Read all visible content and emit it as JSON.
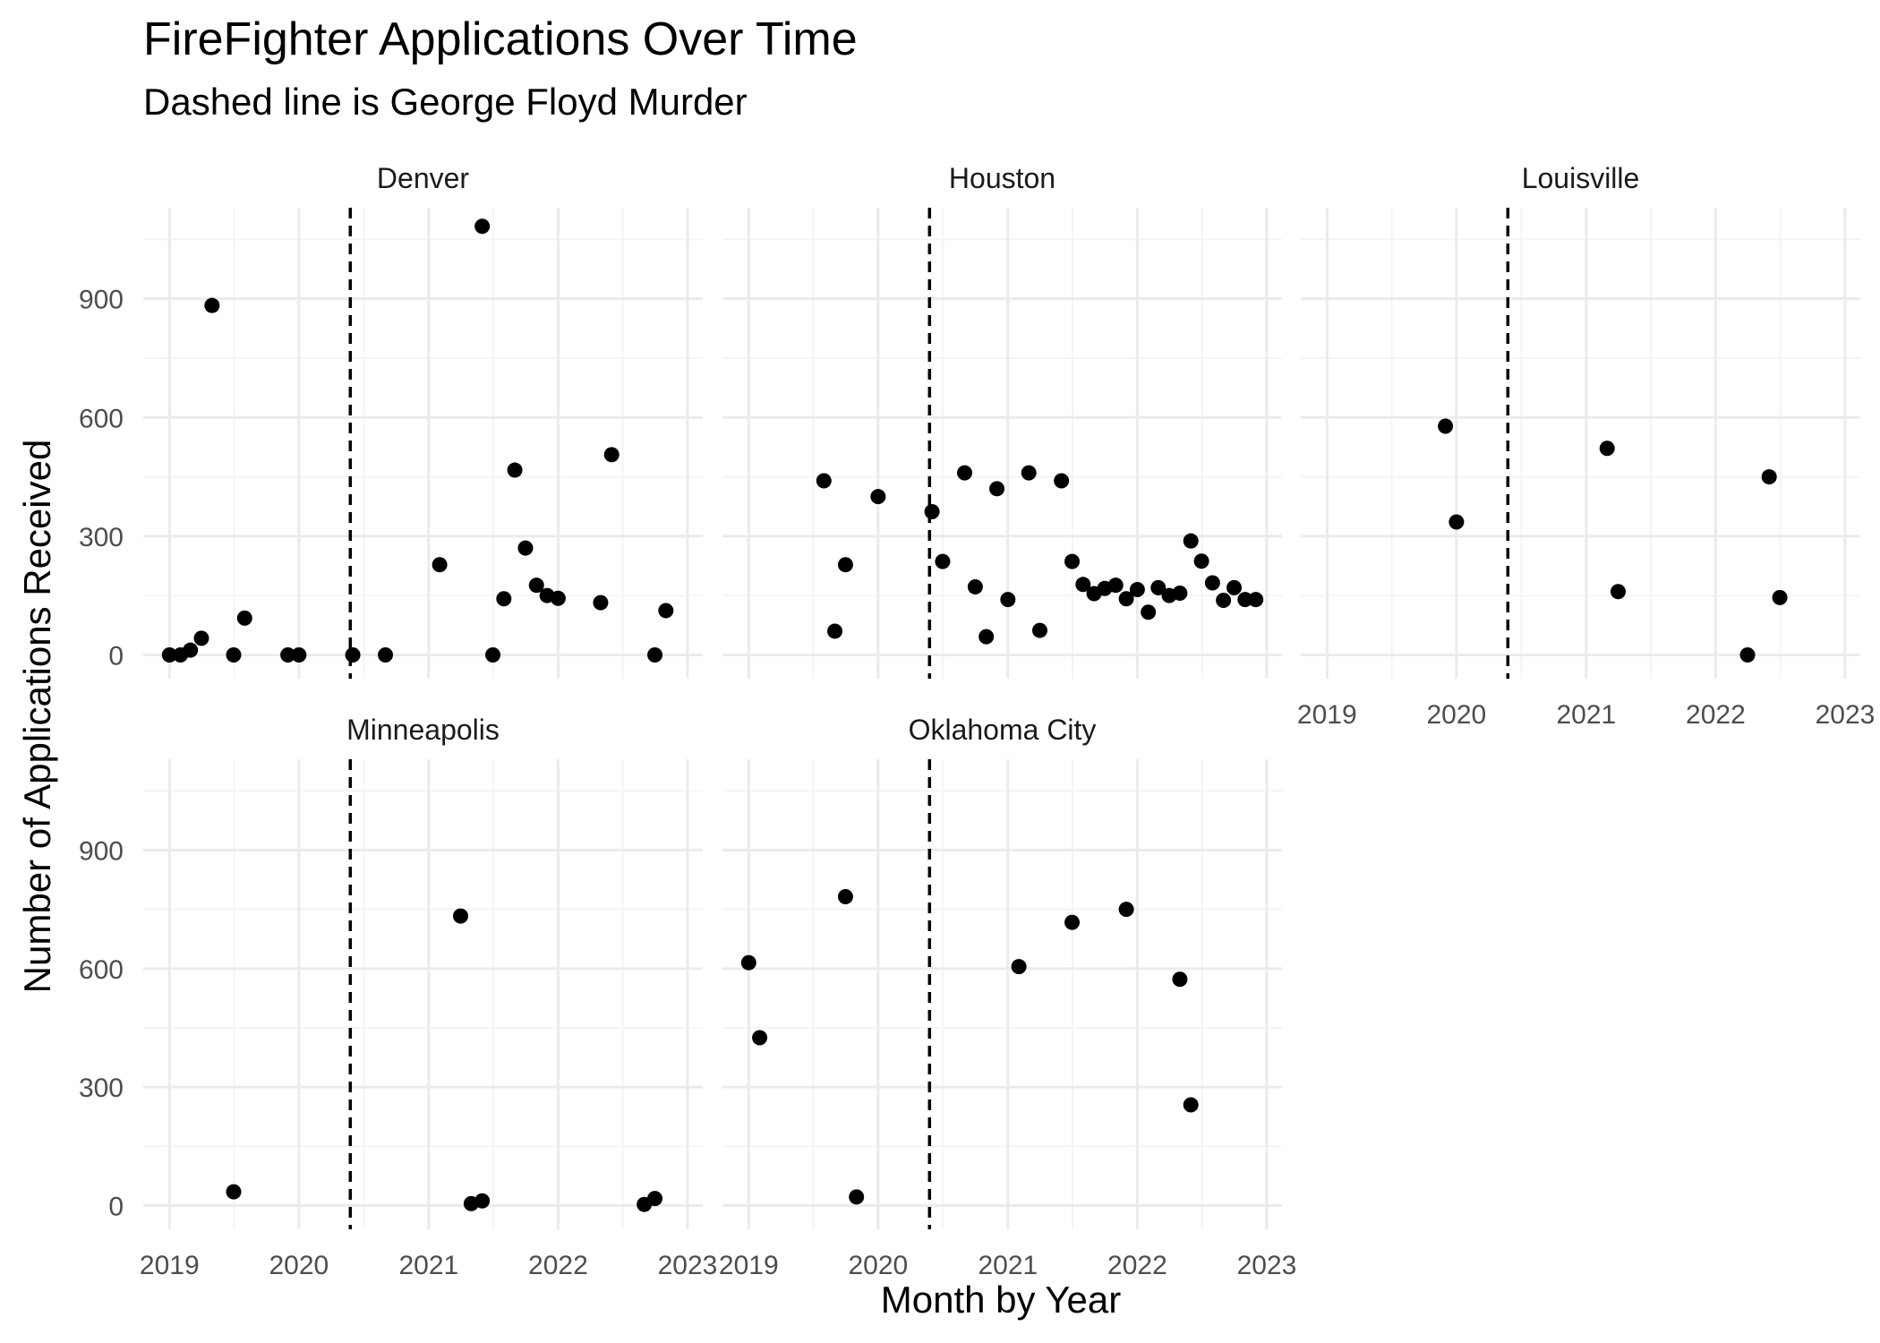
{
  "chart_data": {
    "type": "scatter",
    "title": "FireFighter Applications Over Time",
    "subtitle": "Dashed line is George Floyd Murder",
    "xlabel": "Month by Year",
    "ylabel": "Number of Applications Received",
    "x_ticks": [
      "2019",
      "2020",
      "2021",
      "2022",
      "2023"
    ],
    "y_ticks": [
      "0",
      "300",
      "600",
      "900"
    ],
    "ylim": [
      -60,
      1130
    ],
    "xlim": [
      "2018-10-19",
      "2023-02-13"
    ],
    "vline_date": "2020-05-25",
    "grid": true,
    "marker_color": "#000000",
    "grid_color": "#ebebeb",
    "facets": [
      {
        "label": "Denver",
        "points": [
          {
            "date": "2019-01-01",
            "value": 0
          },
          {
            "date": "2019-02-01",
            "value": 0
          },
          {
            "date": "2019-03-01",
            "value": 12
          },
          {
            "date": "2019-04-01",
            "value": 42
          },
          {
            "date": "2019-05-01",
            "value": 883
          },
          {
            "date": "2019-07-01",
            "value": 0
          },
          {
            "date": "2019-08-01",
            "value": 93
          },
          {
            "date": "2019-12-01",
            "value": 0
          },
          {
            "date": "2020-01-01",
            "value": 0
          },
          {
            "date": "2020-06-01",
            "value": 0
          },
          {
            "date": "2020-09-01",
            "value": 0
          },
          {
            "date": "2021-02-01",
            "value": 228
          },
          {
            "date": "2021-06-01",
            "value": 1083
          },
          {
            "date": "2021-07-01",
            "value": 0
          },
          {
            "date": "2021-08-01",
            "value": 142
          },
          {
            "date": "2021-09-01",
            "value": 467
          },
          {
            "date": "2021-10-01",
            "value": 270
          },
          {
            "date": "2021-11-01",
            "value": 176
          },
          {
            "date": "2021-12-01",
            "value": 150
          },
          {
            "date": "2022-01-01",
            "value": 143
          },
          {
            "date": "2022-05-01",
            "value": 132
          },
          {
            "date": "2022-06-01",
            "value": 506
          },
          {
            "date": "2022-10-01",
            "value": 0
          },
          {
            "date": "2022-11-01",
            "value": 112
          }
        ]
      },
      {
        "label": "Houston",
        "points": [
          {
            "date": "2019-08-01",
            "value": 440
          },
          {
            "date": "2019-09-01",
            "value": 60
          },
          {
            "date": "2019-10-01",
            "value": 228
          },
          {
            "date": "2020-01-01",
            "value": 400
          },
          {
            "date": "2020-06-01",
            "value": 362
          },
          {
            "date": "2020-07-01",
            "value": 236
          },
          {
            "date": "2020-09-01",
            "value": 460
          },
          {
            "date": "2020-10-01",
            "value": 172
          },
          {
            "date": "2020-11-01",
            "value": 46
          },
          {
            "date": "2020-12-01",
            "value": 420
          },
          {
            "date": "2021-01-01",
            "value": 140
          },
          {
            "date": "2021-03-01",
            "value": 460
          },
          {
            "date": "2021-04-01",
            "value": 62
          },
          {
            "date": "2021-06-01",
            "value": 440
          },
          {
            "date": "2021-07-01",
            "value": 236
          },
          {
            "date": "2021-08-01",
            "value": 178
          },
          {
            "date": "2021-09-01",
            "value": 155
          },
          {
            "date": "2021-10-01",
            "value": 168
          },
          {
            "date": "2021-11-01",
            "value": 176
          },
          {
            "date": "2021-12-01",
            "value": 142
          },
          {
            "date": "2022-01-01",
            "value": 165
          },
          {
            "date": "2022-02-01",
            "value": 108
          },
          {
            "date": "2022-03-01",
            "value": 170
          },
          {
            "date": "2022-04-01",
            "value": 150
          },
          {
            "date": "2022-05-01",
            "value": 156
          },
          {
            "date": "2022-06-01",
            "value": 288
          },
          {
            "date": "2022-07-01",
            "value": 237
          },
          {
            "date": "2022-08-01",
            "value": 182
          },
          {
            "date": "2022-09-01",
            "value": 138
          },
          {
            "date": "2022-10-01",
            "value": 170
          },
          {
            "date": "2022-11-01",
            "value": 140
          },
          {
            "date": "2022-12-01",
            "value": 140
          }
        ]
      },
      {
        "label": "Louisville",
        "points": [
          {
            "date": "2019-12-01",
            "value": 578
          },
          {
            "date": "2020-01-01",
            "value": 336
          },
          {
            "date": "2021-03-01",
            "value": 522
          },
          {
            "date": "2021-04-01",
            "value": 160
          },
          {
            "date": "2022-04-01",
            "value": 0
          },
          {
            "date": "2022-06-01",
            "value": 450
          },
          {
            "date": "2022-07-01",
            "value": 145
          }
        ]
      },
      {
        "label": "Minneapolis",
        "points": [
          {
            "date": "2019-07-01",
            "value": 35
          },
          {
            "date": "2021-04-01",
            "value": 733
          },
          {
            "date": "2021-05-01",
            "value": 5
          },
          {
            "date": "2021-06-01",
            "value": 12
          },
          {
            "date": "2022-09-01",
            "value": 3
          },
          {
            "date": "2022-10-01",
            "value": 18
          }
        ]
      },
      {
        "label": "Oklahoma City",
        "points": [
          {
            "date": "2019-01-01",
            "value": 615
          },
          {
            "date": "2019-02-01",
            "value": 425
          },
          {
            "date": "2019-10-01",
            "value": 782
          },
          {
            "date": "2019-11-01",
            "value": 22
          },
          {
            "date": "2021-02-01",
            "value": 605
          },
          {
            "date": "2021-07-01",
            "value": 717
          },
          {
            "date": "2021-12-01",
            "value": 750
          },
          {
            "date": "2022-05-01",
            "value": 573
          },
          {
            "date": "2022-06-01",
            "value": 255
          }
        ]
      }
    ]
  }
}
